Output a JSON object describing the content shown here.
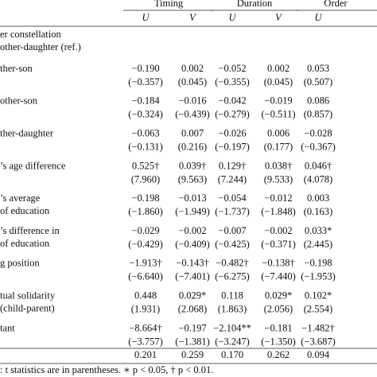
{
  "table": {
    "groups": [
      "Timing",
      "Duration",
      "Order"
    ],
    "subheaders": [
      "U",
      "V",
      "U",
      "V",
      "U"
    ],
    "rows": [
      {
        "label": [
          "er constellation",
          "other-daughter (ref.)"
        ],
        "cells": []
      },
      {
        "label": [
          "ther-son"
        ],
        "cells": [
          [
            "−0.190",
            "(−0.357)"
          ],
          [
            "0.002",
            "(0.045)"
          ],
          [
            "−0.052",
            "(−0.355)"
          ],
          [
            "0.002",
            "(0.045)"
          ],
          [
            "0.053",
            "(0.507)"
          ]
        ]
      },
      {
        "label": [
          "other-son"
        ],
        "cells": [
          [
            "−0.184",
            "(−0.324)"
          ],
          [
            "−0.016",
            "(−0.439)"
          ],
          [
            "−0.042",
            "(−0.279)"
          ],
          [
            "−0.019",
            "(−0.511)"
          ],
          [
            "0.086",
            "(0.857)"
          ]
        ]
      },
      {
        "label": [
          "ther-daughter"
        ],
        "cells": [
          [
            "−0.063",
            "(−0.131)"
          ],
          [
            "0.007",
            "(0.216)"
          ],
          [
            "−0.026",
            "(−0.197)"
          ],
          [
            "0.006",
            "(0.177)"
          ],
          [
            "−0.028",
            "(−0.367)"
          ]
        ]
      },
      {
        "label": [
          "’s age difference"
        ],
        "cells": [
          [
            "0.525†",
            "(7.960)"
          ],
          [
            "0.039†",
            "(9.563)"
          ],
          [
            "0.129†",
            "(7.244)"
          ],
          [
            "0.038†",
            "(9.533)"
          ],
          [
            "0.046†",
            "(4.078)"
          ]
        ]
      },
      {
        "label": [
          "’s average",
          "of education"
        ],
        "cells": [
          [
            "−0.198",
            "(−1.860)"
          ],
          [
            "−0.013",
            "(−1.949)"
          ],
          [
            "−0.054",
            "(−1.737)"
          ],
          [
            "−0.012",
            "(−1.848)"
          ],
          [
            "0.003",
            "(0.163)"
          ]
        ]
      },
      {
        "label": [
          "’s difference in",
          "of education"
        ],
        "cells": [
          [
            "−0.029",
            "(−0.429)"
          ],
          [
            "−0.002",
            "(−0.409)"
          ],
          [
            "−0.007",
            "(−0.425)"
          ],
          [
            "−0.002",
            "(−0.371)"
          ],
          [
            "0.033*",
            "(2.445)"
          ]
        ]
      },
      {
        "label": [
          "g position"
        ],
        "cells": [
          [
            "−1.913†",
            "(−6.640)"
          ],
          [
            "−0.143†",
            "(−7.401)"
          ],
          [
            "−0.482†",
            "(−6.275)"
          ],
          [
            "−0.138†",
            "(−7.440)"
          ],
          [
            "−0.198",
            "(−1.953)"
          ]
        ]
      },
      {
        "label": [
          "tual solidarity",
          "(child-parent)"
        ],
        "cells": [
          [
            "0.448",
            "(1.931)"
          ],
          [
            "0.029*",
            "(2.068)"
          ],
          [
            "0.118",
            "(1.863)"
          ],
          [
            "0.029*",
            "(2.056)"
          ],
          [
            "0.102*",
            "(2.554)"
          ]
        ]
      },
      {
        "label": [
          "tant"
        ],
        "cells": [
          [
            "−8.664†",
            "(−3.757)"
          ],
          [
            "−0.197",
            "(−1.381)"
          ],
          [
            "−2.104**",
            "(−3.247)"
          ],
          [
            "−0.181",
            "(−1.350)"
          ],
          [
            "−1.482†",
            "(−3.687)"
          ]
        ]
      }
    ],
    "footer": [
      "0.201",
      "0.259",
      "0.170",
      "0.262",
      "0.094"
    ],
    "note": ": t statistics are in parentheses. ∗ p < 0.05, † p < 0.01."
  }
}
